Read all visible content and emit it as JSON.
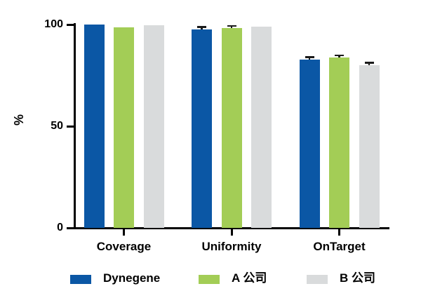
{
  "chart_data": {
    "type": "bar",
    "title": "",
    "ylabel": "%",
    "ylim": [
      0,
      100
    ],
    "yticks": [
      0,
      50,
      100
    ],
    "grid": false,
    "legend_position": "bottom",
    "categories": [
      "Coverage",
      "Uniformity",
      "OnTarget"
    ],
    "series": [
      {
        "name": "Dynegene",
        "color": "#0B57A5",
        "values": [
          99.9,
          97.7,
          82.8
        ],
        "errors": [
          0.1,
          0.7,
          0.7
        ]
      },
      {
        "name": "A 公司",
        "color": "#A3CD56",
        "values": [
          98.5,
          98.3,
          83.7
        ],
        "errors": [
          0.1,
          0.6,
          0.7
        ]
      },
      {
        "name": "B 公司",
        "color": "#D9DBDC",
        "values": [
          99.7,
          99.0,
          79.9
        ],
        "errors": [
          0.1,
          0.2,
          0.8
        ]
      }
    ],
    "error_bar_color": "#1A1A1A",
    "axis_color": "#000000",
    "background_color": "#FFFFFF"
  }
}
